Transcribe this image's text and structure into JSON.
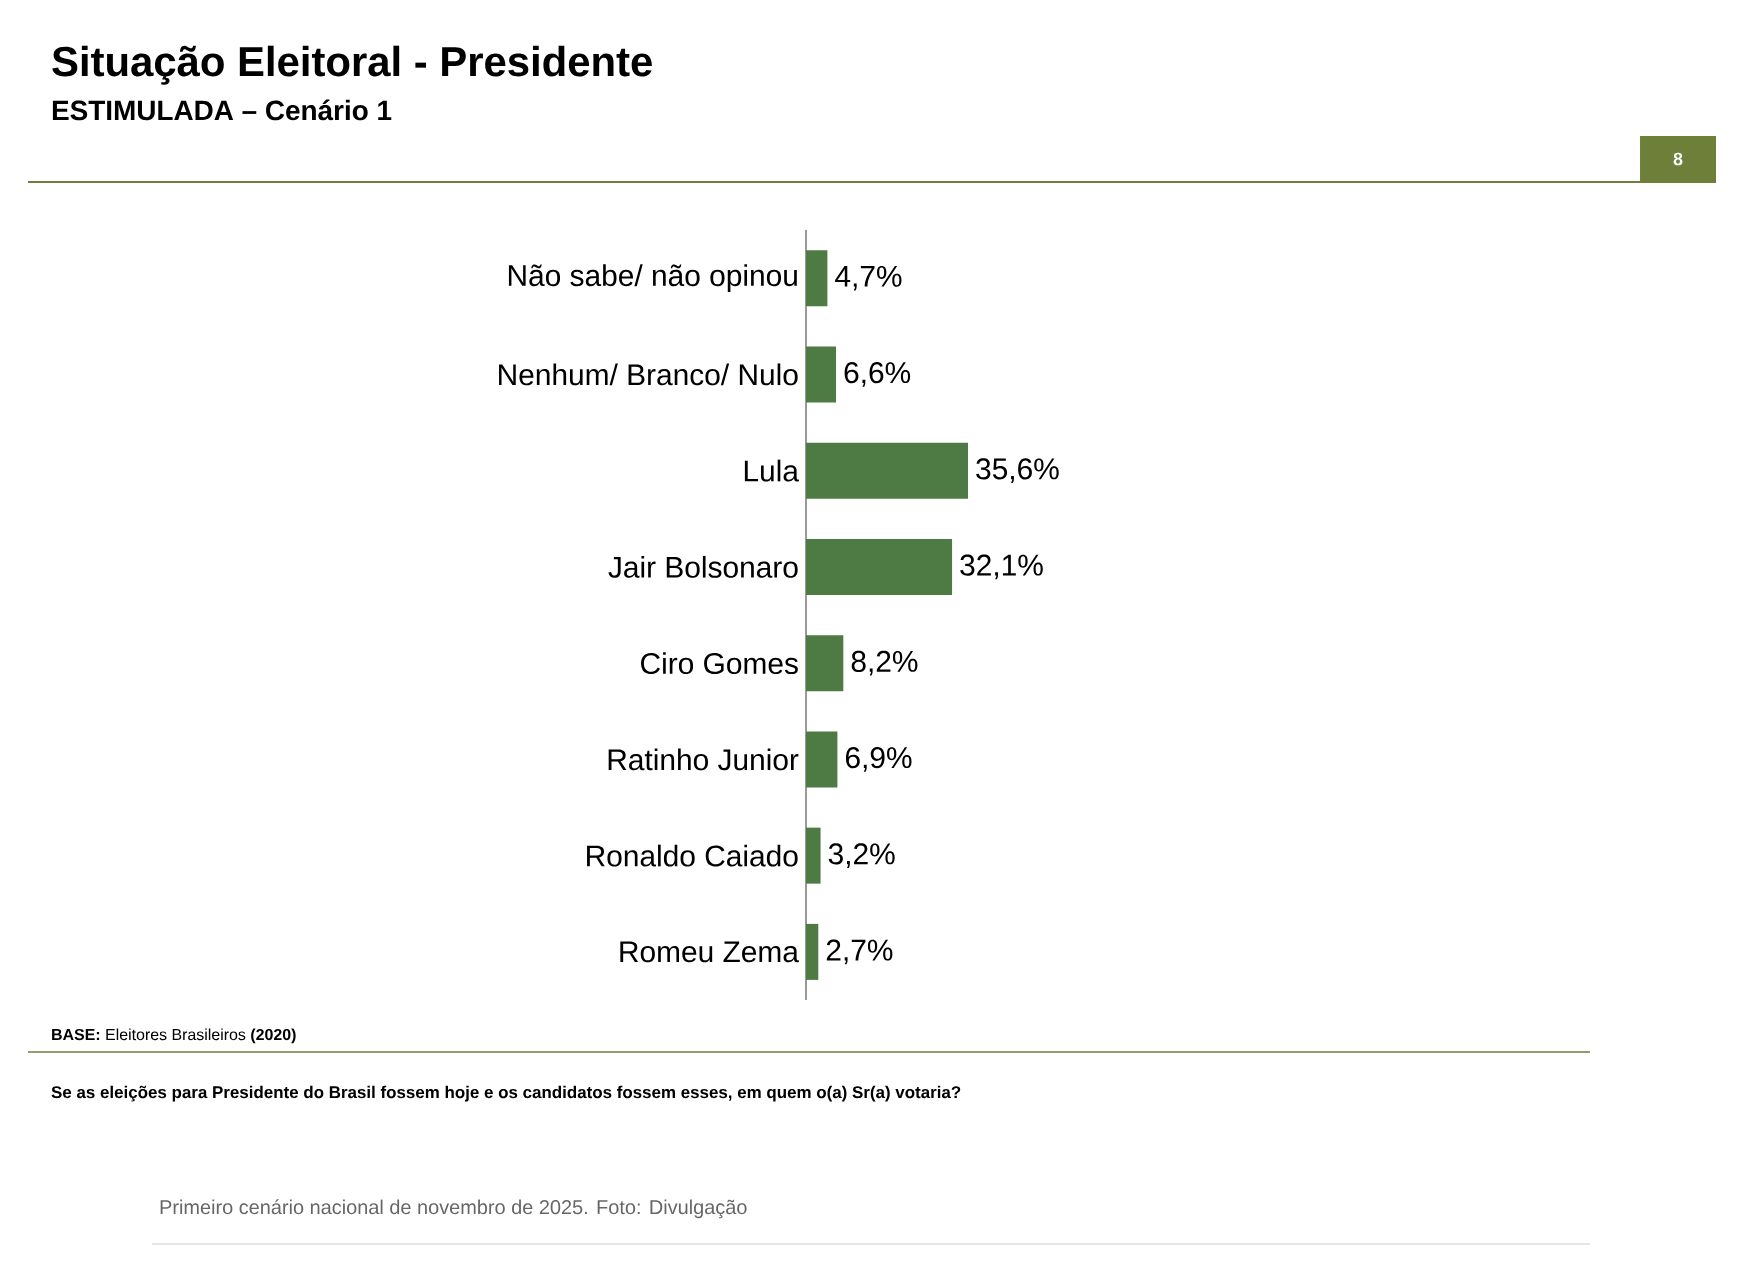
{
  "chart_data": {
    "type": "bar",
    "orientation": "horizontal",
    "title": "Situação Eleitoral - Presidente",
    "subtitle": "ESTIMULADA – Cenário 1",
    "categories": [
      "Não sabe/ não opinou",
      "Nenhum/ Branco/ Nulo",
      "Lula",
      "Jair Bolsonaro",
      "Ciro Gomes",
      "Ratinho Junior",
      "Ronaldo Caiado",
      "Romeu Zema"
    ],
    "values": [
      4.7,
      6.6,
      35.6,
      32.1,
      8.2,
      6.9,
      3.2,
      2.7
    ],
    "value_labels": [
      "4,7%",
      "6,6%",
      "35,6%",
      "32,1%",
      "8,2%",
      "6,9%",
      "3,2%",
      "2,7%"
    ],
    "color": "#4e7a43",
    "annotations": [
      "8",
      "**BASE:** Eleitores Brasileiros **(2020)**",
      "Se as eleições para Presidente do Brasil fossem hoje e os candidatos fossem esses, em quem o(a) Sr(a) votaria?",
      "Primeiro cenário nacional de novembro de 2025. Foto: Divulgação"
    ]
  }
}
